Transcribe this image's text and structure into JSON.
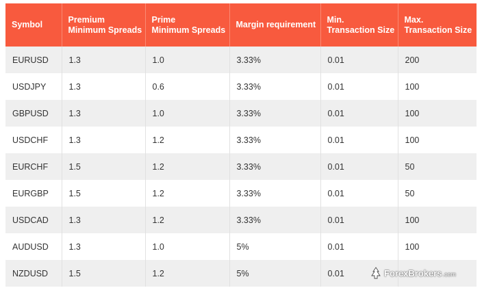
{
  "table": {
    "headers": [
      "Symbol",
      "Premium\nMinimum Spreads",
      "Prime\nMinimum Spreads",
      "Margin requirement",
      "Min.\nTransaction Size",
      "Max.\nTransaction Size"
    ],
    "rows": [
      [
        "EURUSD",
        "1.3",
        "1.0",
        "3.33%",
        "0.01",
        "200"
      ],
      [
        "USDJPY",
        "1.3",
        "0.6",
        "3.33%",
        "0.01",
        "100"
      ],
      [
        "GBPUSD",
        "1.3",
        "1.0",
        "3.33%",
        "0.01",
        "100"
      ],
      [
        "USDCHF",
        "1.3",
        "1.2",
        "3.33%",
        "0.01",
        "100"
      ],
      [
        "EURCHF",
        "1.5",
        "1.2",
        "3.33%",
        "0.01",
        "50"
      ],
      [
        "EURGBP",
        "1.5",
        "1.2",
        "3.33%",
        "0.01",
        "50"
      ],
      [
        "USDCAD",
        "1.3",
        "1.2",
        "3.33%",
        "0.01",
        "100"
      ],
      [
        "AUDUSD",
        "1.3",
        "1.0",
        "5%",
        "0.01",
        "100"
      ],
      [
        "NZDUSD",
        "1.5",
        "1.2",
        "5%",
        "0.01",
        ""
      ]
    ]
  },
  "watermark": {
    "brand": "ForexBrokers",
    "suffix": ".com"
  },
  "colors": {
    "header_bg": "#f85a3e",
    "row_stripe": "#efefef",
    "text": "#333333"
  }
}
